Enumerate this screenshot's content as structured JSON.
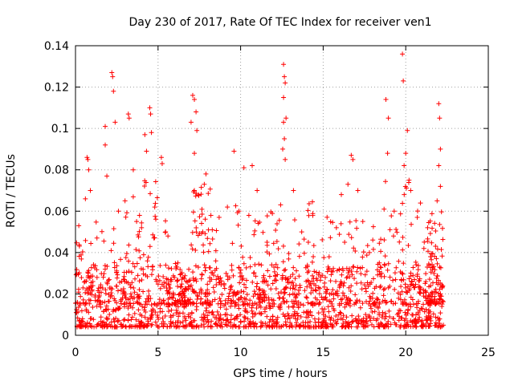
{
  "chart_data": {
    "type": "scatter",
    "title": "Day 230 of 2017, Rate Of TEC Index for receiver ven1",
    "xlabel": "GPS time / hours",
    "ylabel": "ROTI / TECUs",
    "xlim": [
      0,
      25
    ],
    "ylim": [
      0,
      0.14
    ],
    "x_ticks": [
      0,
      5,
      10,
      15,
      20,
      25
    ],
    "y_ticks": [
      0,
      0.02,
      0.04,
      0.06,
      0.08,
      0.1,
      0.12,
      0.14
    ],
    "x_tick_labels": [
      "0",
      "5",
      "10",
      "15",
      "20",
      "25"
    ],
    "y_tick_labels": [
      "0",
      "0.02",
      "0.04",
      "0.06",
      "0.08",
      "0.1",
      "0.12",
      "0.14"
    ],
    "grid": true,
    "marker": "+",
    "color": "#ff0000",
    "series": [
      {
        "x_range": [
          0,
          22.3
        ],
        "baseline_range": [
          0.004,
          0.035
        ],
        "points": [
          [
            2.2,
            0.127
          ],
          [
            2.25,
            0.125
          ],
          [
            2.3,
            0.118
          ],
          [
            1.8,
            0.101
          ],
          [
            2.4,
            0.103
          ],
          [
            3.2,
            0.107
          ],
          [
            3.25,
            0.105
          ],
          [
            4.5,
            0.11
          ],
          [
            4.55,
            0.107
          ],
          [
            4.6,
            0.098
          ],
          [
            4.2,
            0.097
          ],
          [
            4.3,
            0.089
          ],
          [
            5.2,
            0.086
          ],
          [
            5.25,
            0.083
          ],
          [
            3.5,
            0.08
          ],
          [
            0.7,
            0.086
          ],
          [
            0.75,
            0.085
          ],
          [
            0.8,
            0.08
          ],
          [
            0.9,
            0.07
          ],
          [
            1.8,
            0.092
          ],
          [
            1.9,
            0.077
          ],
          [
            7.1,
            0.116
          ],
          [
            7.2,
            0.114
          ],
          [
            7.3,
            0.108
          ],
          [
            7.0,
            0.103
          ],
          [
            7.35,
            0.099
          ],
          [
            7.2,
            0.088
          ],
          [
            7.9,
            0.078
          ],
          [
            7.8,
            0.073
          ],
          [
            9.6,
            0.089
          ],
          [
            10.2,
            0.081
          ],
          [
            10.7,
            0.082
          ],
          [
            11.0,
            0.07
          ],
          [
            12.6,
            0.131
          ],
          [
            12.65,
            0.125
          ],
          [
            12.7,
            0.122
          ],
          [
            12.6,
            0.115
          ],
          [
            12.75,
            0.105
          ],
          [
            12.6,
            0.103
          ],
          [
            12.65,
            0.095
          ],
          [
            12.55,
            0.09
          ],
          [
            12.7,
            0.085
          ],
          [
            13.2,
            0.07
          ],
          [
            16.7,
            0.087
          ],
          [
            16.8,
            0.085
          ],
          [
            16.5,
            0.073
          ],
          [
            17.1,
            0.07
          ],
          [
            16.1,
            0.068
          ],
          [
            18.8,
            0.114
          ],
          [
            18.95,
            0.105
          ],
          [
            18.9,
            0.088
          ],
          [
            19.8,
            0.136
          ],
          [
            19.85,
            0.123
          ],
          [
            20.1,
            0.099
          ],
          [
            20.0,
            0.088
          ],
          [
            19.9,
            0.082
          ],
          [
            20.2,
            0.075
          ],
          [
            20.3,
            0.07
          ],
          [
            22.0,
            0.112
          ],
          [
            22.05,
            0.105
          ],
          [
            22.1,
            0.09
          ],
          [
            22.0,
            0.082
          ],
          [
            22.1,
            0.072
          ],
          [
            21.9,
            0.065
          ],
          [
            0.2,
            0.053
          ],
          [
            0.6,
            0.066
          ],
          [
            1.3,
            0.047
          ],
          [
            2.6,
            0.06
          ],
          [
            3.0,
            0.065
          ],
          [
            3.7,
            0.055
          ],
          [
            4.0,
            0.052
          ],
          [
            4.8,
            0.062
          ],
          [
            5.6,
            0.048
          ],
          [
            6.2,
            0.035
          ],
          [
            8.2,
            0.058
          ],
          [
            8.7,
            0.057
          ],
          [
            9.2,
            0.062
          ],
          [
            9.9,
            0.06
          ],
          [
            10.5,
            0.058
          ],
          [
            11.6,
            0.045
          ],
          [
            13.7,
            0.05
          ],
          [
            14.1,
            0.045
          ],
          [
            14.4,
            0.038
          ],
          [
            15.3,
            0.033
          ],
          [
            15.8,
            0.052
          ],
          [
            16.3,
            0.045
          ],
          [
            17.4,
            0.055
          ],
          [
            17.8,
            0.04
          ],
          [
            18.4,
            0.035
          ],
          [
            19.3,
            0.06
          ],
          [
            20.7,
            0.057
          ],
          [
            21.1,
            0.042
          ],
          [
            21.5,
            0.038
          ]
        ]
      }
    ],
    "clusters": [
      {
        "x_range": [
          0.0,
          2.8
        ],
        "y_max": 0.055
      },
      {
        "x_range": [
          2.8,
          5.5
        ],
        "y_max": 0.075
      },
      {
        "x_range": [
          5.5,
          7.0
        ],
        "y_max": 0.028
      },
      {
        "x_range": [
          7.0,
          8.2
        ],
        "y_max": 0.072
      },
      {
        "x_range": [
          8.2,
          11.5
        ],
        "y_max": 0.065
      },
      {
        "x_range": [
          11.5,
          14.5
        ],
        "y_max": 0.068
      },
      {
        "x_range": [
          14.5,
          18.2
        ],
        "y_max": 0.058
      },
      {
        "x_range": [
          18.2,
          21.3
        ],
        "y_max": 0.075
      },
      {
        "x_range": [
          21.3,
          22.3
        ],
        "y_max": 0.06
      }
    ]
  }
}
